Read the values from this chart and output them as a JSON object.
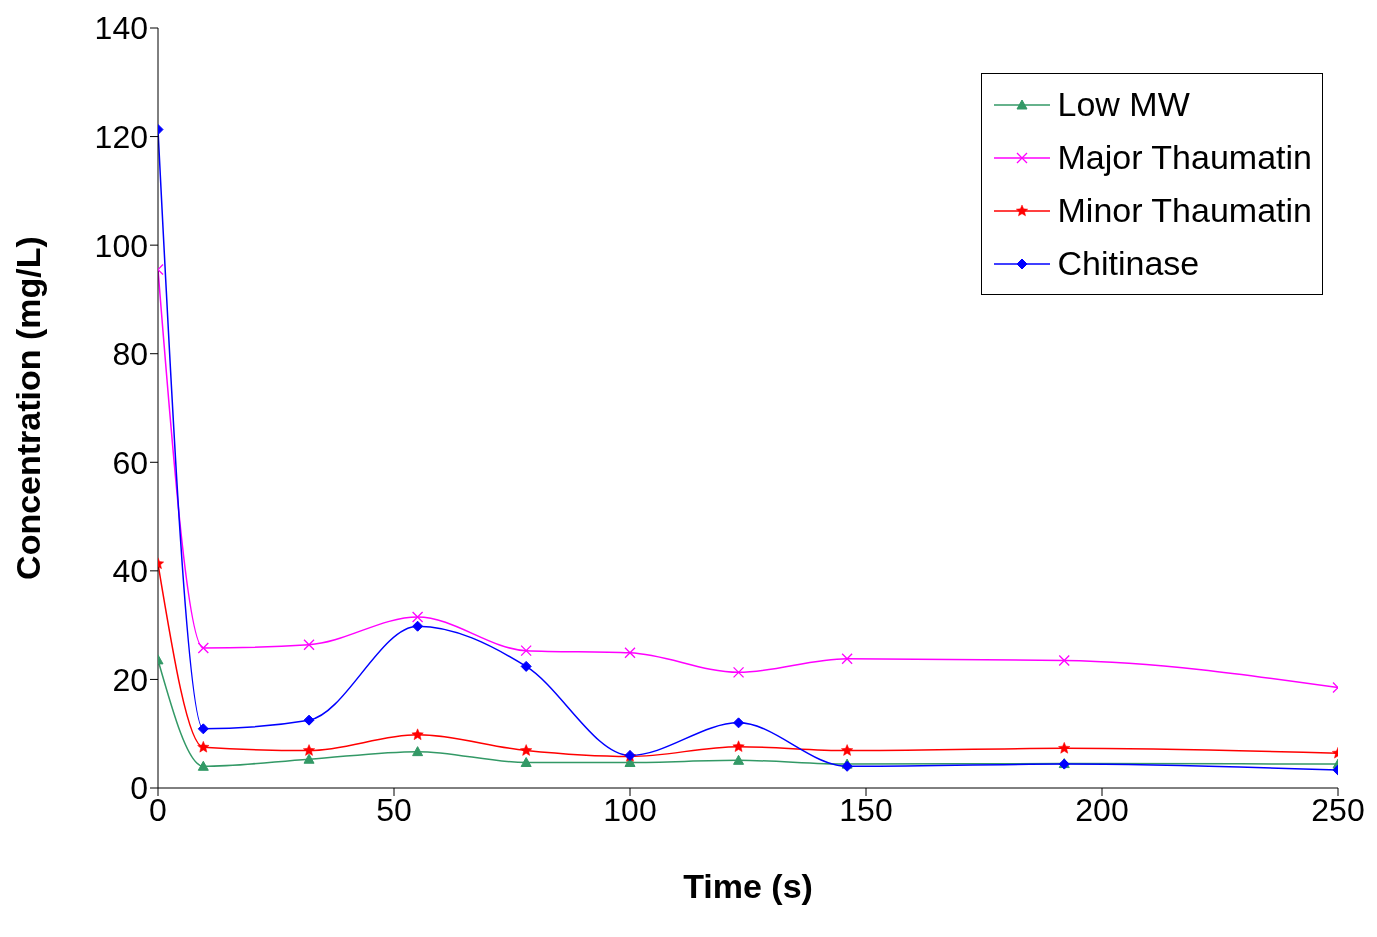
{
  "chart_data": {
    "type": "line",
    "xlabel": "Time (s)",
    "ylabel": "Concentration (mg/L)",
    "xlim": [
      0,
      250
    ],
    "xticks": [
      0,
      50,
      100,
      150,
      200,
      250
    ],
    "ylim": [
      0,
      140
    ],
    "yticks": [
      0,
      20,
      40,
      60,
      80,
      100,
      120,
      140
    ],
    "grid": false,
    "legend": "top right",
    "line_style": "solid",
    "x": [
      0,
      9.6,
      32,
      55,
      78,
      100,
      123,
      146,
      192,
      250
    ],
    "series": [
      {
        "name": "Low MW",
        "color": "#339966",
        "marker": "triangle",
        "values": [
          23.6,
          4,
          5.3,
          6.7,
          4.7,
          4.7,
          5.1,
          4.4,
          4.5,
          4.4
        ]
      },
      {
        "name": "Major Thaumatin",
        "color": "#ff00ff",
        "marker": "cross",
        "values": [
          95.5,
          25.8,
          26.4,
          31.5,
          25.3,
          24.9,
          21.3,
          23.8,
          23.5,
          18.5
        ]
      },
      {
        "name": "Minor Thaumatin",
        "color": "#ff0000",
        "marker": "star",
        "values": [
          41.3,
          7.5,
          6.9,
          9.8,
          6.9,
          5.8,
          7.6,
          6.9,
          7.3,
          6.4
        ]
      },
      {
        "name": "Chitinase",
        "color": "#0000ff",
        "marker": "diamond",
        "values": [
          121.3,
          10.9,
          12.5,
          29.8,
          22.4,
          6,
          12,
          4,
          4.4,
          3.3
        ]
      }
    ]
  }
}
